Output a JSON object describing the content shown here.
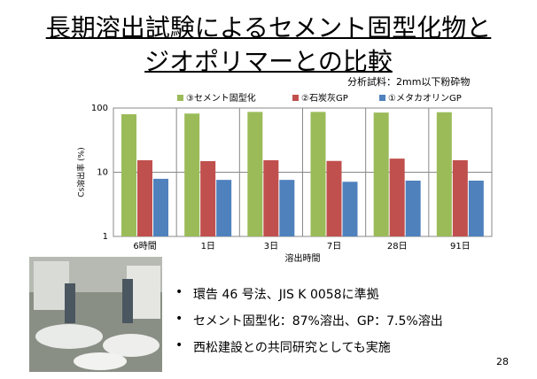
{
  "slide": {
    "title_lines": [
      "長期溶出試験によるセメント固型化物と",
      "ジオポリマーとの比較"
    ],
    "note": "分析試料：2mm以下粉砕物",
    "bullets": [
      "環告 46 号法、JIS K 0058に準拠",
      "セメント固型化：87%溶出、GP：7.5%溶出",
      "西松建設との共同研究としても実施"
    ],
    "page_number": "28"
  },
  "chart_data": {
    "type": "bar",
    "ylabel": "Cs溶出率 (%)",
    "xlabel": "溶出時間",
    "categories": [
      "6時間",
      "1日",
      "3日",
      "7日",
      "28日",
      "91日"
    ],
    "series": [
      {
        "name": "③セメント固型化",
        "color": "#9bbb59",
        "values": [
          80,
          82,
          87,
          87,
          85,
          86
        ]
      },
      {
        "name": "②石炭灰GP",
        "color": "#c0504d",
        "values": [
          15.4,
          14.9,
          15.4,
          15,
          16.3,
          15.4
        ]
      },
      {
        "name": "①メタカオリンGP",
        "color": "#4f81bd",
        "values": [
          7.9,
          7.6,
          7.6,
          7.1,
          7.4,
          7.4
        ]
      }
    ],
    "log_scale": true,
    "ylim": [
      1,
      100
    ],
    "yticks": [
      1,
      10,
      100
    ],
    "grid": true,
    "legend": "top"
  }
}
